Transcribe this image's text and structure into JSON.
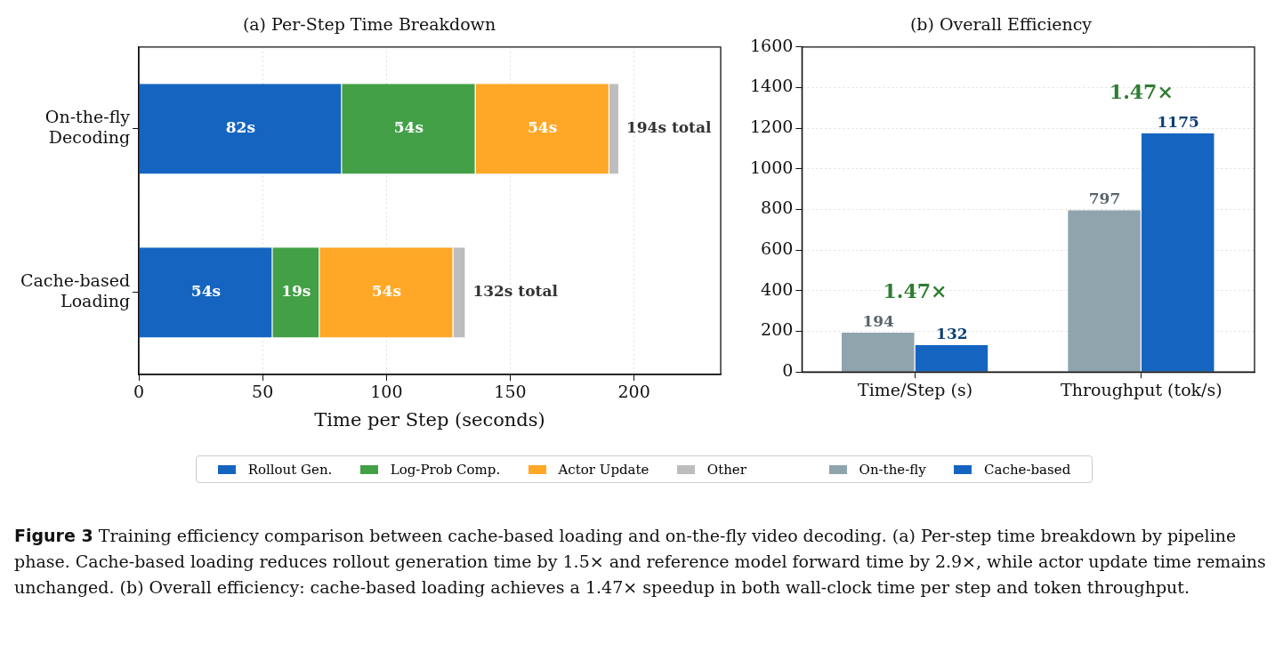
{
  "chart_data": [
    {
      "type": "bar",
      "orientation": "horizontal",
      "stacked": true,
      "title": "(a) Per-Step Time Breakdown",
      "xlabel": "Time per Step (seconds)",
      "categories": [
        "On-the-fly\nDecoding",
        "Cache-based\nLoading"
      ],
      "series": [
        {
          "name": "Rollout Gen.",
          "color": "#1565c0",
          "values": [
            82,
            54
          ],
          "value_labels": [
            "82s",
            "54s"
          ]
        },
        {
          "name": "Log-Prob Comp.",
          "color": "#43a047",
          "values": [
            54,
            19
          ],
          "value_labels": [
            "54s",
            "19s"
          ]
        },
        {
          "name": "Actor Update",
          "color": "#ffa726",
          "values": [
            54,
            54
          ],
          "value_labels": [
            "54s",
            "54s"
          ]
        },
        {
          "name": "Other",
          "color": "#bdbdbd",
          "values": [
            4,
            5
          ]
        }
      ],
      "totals": [
        "194s total",
        "132s total"
      ],
      "xlim": [
        0,
        235
      ],
      "xticks": [
        0,
        50,
        100,
        150,
        200
      ],
      "grid": "x",
      "legend": "bottom",
      "annotations": [
        "Figure 3",
        "Training efficiency comparison between cache-based loading and on-the-fly video decoding. (a) Per-step time breakdown by pipeline phase. Cache-based loading reduces rollout generation time by 1.5× and reference model forward time by 2.9×, while actor update time remains unchanged. (b) Overall efficiency: cache-based loading achieves a 1.47× speedup in both wall-clock time per step and token throughput."
      ]
    },
    {
      "type": "bar",
      "title": "(b) Overall Efficiency",
      "categories": [
        "Time/Step (s)",
        "Throughput (tok/s)"
      ],
      "series": [
        {
          "name": "On-the-fly",
          "color": "#90a4ae",
          "values": [
            194,
            797
          ]
        },
        {
          "name": "Cache-based",
          "color": "#1565c0",
          "values": [
            132,
            1175
          ]
        }
      ],
      "data_labels": true,
      "ylim": [
        0,
        1600
      ],
      "yticks": [
        0,
        200,
        400,
        600,
        800,
        1000,
        1200,
        1400,
        1600
      ],
      "grid": "y",
      "legend": "bottom",
      "annotations": [
        "1.47×",
        "1.47×"
      ]
    }
  ]
}
